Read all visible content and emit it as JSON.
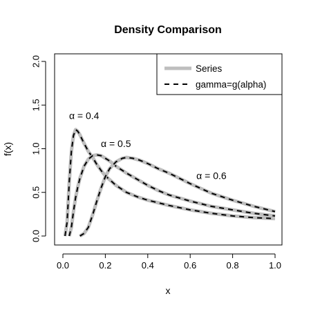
{
  "chart_data": {
    "type": "line",
    "title": "Density Comparison",
    "xlabel": "x",
    "ylabel": "f(x)",
    "xlim": [
      0,
      1
    ],
    "ylim": [
      0,
      2
    ],
    "x_ticks": [
      "0.0",
      "0.2",
      "0.4",
      "0.6",
      "0.8",
      "1.0"
    ],
    "y_ticks": [
      "0.0",
      "0.5",
      "1.0",
      "1.5",
      "2.0"
    ],
    "legend": {
      "placement": "top-right",
      "entries": [
        {
          "label": "Series",
          "color": "#bebebe",
          "style": "solid"
        },
        {
          "label": "gamma=g(alpha)",
          "color": "#000000",
          "style": "dashed"
        }
      ]
    },
    "series": [
      {
        "annotation": "α = 0.4",
        "x": [
          0.01,
          0.02,
          0.03,
          0.04,
          0.05,
          0.06,
          0.07,
          0.08,
          0.1,
          0.12,
          0.14,
          0.16,
          0.18,
          0.2,
          0.25,
          0.3,
          0.35,
          0.4,
          0.45,
          0.5,
          0.6,
          0.7,
          0.8,
          0.9,
          1.0
        ],
        "y": [
          0.0,
          0.16,
          0.62,
          0.97,
          1.15,
          1.22,
          1.2,
          1.16,
          1.06,
          0.97,
          0.9,
          0.82,
          0.75,
          0.69,
          0.58,
          0.5,
          0.45,
          0.41,
          0.38,
          0.35,
          0.3,
          0.26,
          0.23,
          0.21,
          0.2
        ]
      },
      {
        "annotation": "α = 0.5",
        "x": [
          0.03,
          0.04,
          0.05,
          0.06,
          0.07,
          0.08,
          0.1,
          0.12,
          0.14,
          0.16,
          0.18,
          0.2,
          0.22,
          0.25,
          0.3,
          0.35,
          0.4,
          0.45,
          0.5,
          0.6,
          0.7,
          0.8,
          0.9,
          1.0
        ],
        "y": [
          0.0,
          0.1,
          0.28,
          0.44,
          0.56,
          0.66,
          0.8,
          0.88,
          0.92,
          0.93,
          0.92,
          0.89,
          0.86,
          0.8,
          0.72,
          0.65,
          0.58,
          0.52,
          0.47,
          0.4,
          0.34,
          0.3,
          0.26,
          0.23
        ]
      },
      {
        "annotation": "α = 0.6",
        "x": [
          0.08,
          0.1,
          0.12,
          0.14,
          0.16,
          0.18,
          0.2,
          0.22,
          0.25,
          0.28,
          0.3,
          0.33,
          0.36,
          0.4,
          0.45,
          0.5,
          0.55,
          0.6,
          0.7,
          0.8,
          0.9,
          1.0
        ],
        "y": [
          0.0,
          0.03,
          0.1,
          0.24,
          0.4,
          0.55,
          0.68,
          0.77,
          0.85,
          0.89,
          0.9,
          0.89,
          0.87,
          0.83,
          0.77,
          0.72,
          0.66,
          0.6,
          0.49,
          0.41,
          0.34,
          0.28
        ]
      }
    ],
    "annotations": [
      {
        "text": "α = 0.4",
        "x": 0.1,
        "y": 1.37
      },
      {
        "text": "α = 0.5",
        "x": 0.25,
        "y": 1.05
      },
      {
        "text": "α = 0.6",
        "x": 0.7,
        "y": 0.68
      }
    ]
  }
}
